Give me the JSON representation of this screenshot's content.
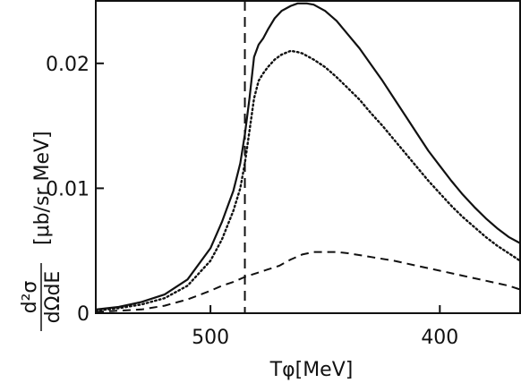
{
  "chart_data": {
    "type": "line",
    "title": "",
    "xlabel": "Tφ[MeV]",
    "ylabel": {
      "numerator": "d²σ",
      "denominator": "dΩdE",
      "unit": "[μb/sr MeV]"
    },
    "x_axis_reversed": true,
    "xlim": [
      550,
      365
    ],
    "ylim": [
      0,
      0.025
    ],
    "x_ticks": [
      {
        "value": 500,
        "label": "500"
      },
      {
        "value": 400,
        "label": "400"
      }
    ],
    "y_ticks": [
      {
        "value": 0,
        "label": "0"
      },
      {
        "value": 0.01,
        "label": "0.01"
      },
      {
        "value": 0.02,
        "label": "0.02"
      }
    ],
    "grid": false,
    "legend": "none",
    "reference_lines": [
      {
        "axis": "x",
        "value": 485,
        "style": "dashed"
      }
    ],
    "series": [
      {
        "style": "solid",
        "x": [
          550,
          540,
          530,
          520,
          510,
          500,
          495,
          490,
          487,
          485,
          483,
          481,
          479,
          477,
          475,
          472,
          469,
          465,
          462,
          458,
          455,
          450,
          445,
          440,
          435,
          430,
          425,
          420,
          415,
          410,
          405,
          400,
          395,
          390,
          385,
          380,
          375,
          370,
          365
        ],
        "y": [
          0.0003,
          0.0005,
          0.0009,
          0.0015,
          0.0027,
          0.0052,
          0.0073,
          0.0098,
          0.012,
          0.0143,
          0.0172,
          0.0205,
          0.0215,
          0.022,
          0.0227,
          0.0236,
          0.0242,
          0.0246,
          0.0248,
          0.0248,
          0.0247,
          0.0242,
          0.0234,
          0.0223,
          0.0212,
          0.0199,
          0.0186,
          0.0172,
          0.0158,
          0.0144,
          0.013,
          0.0118,
          0.0106,
          0.0095,
          0.0085,
          0.0076,
          0.0068,
          0.0061,
          0.0056
        ]
      },
      {
        "style": "dotted",
        "x": [
          550,
          540,
          530,
          520,
          510,
          500,
          495,
          490,
          487,
          485,
          483,
          481,
          479,
          477,
          475,
          472,
          469,
          465,
          462,
          460,
          455,
          450,
          445,
          440,
          435,
          430,
          425,
          420,
          415,
          410,
          405,
          400,
          395,
          390,
          385,
          380,
          375,
          370,
          365
        ],
        "y": [
          0.0002,
          0.0004,
          0.0007,
          0.0012,
          0.0022,
          0.0042,
          0.0059,
          0.0082,
          0.01,
          0.012,
          0.0146,
          0.0172,
          0.0186,
          0.0192,
          0.0197,
          0.0203,
          0.0207,
          0.021,
          0.0209,
          0.0208,
          0.0203,
          0.0197,
          0.0189,
          0.018,
          0.0171,
          0.016,
          0.015,
          0.0139,
          0.0128,
          0.0117,
          0.0106,
          0.0096,
          0.0086,
          0.0077,
          0.0069,
          0.0061,
          0.0054,
          0.0048,
          0.0042
        ]
      },
      {
        "style": "dashed",
        "x": [
          550,
          540,
          530,
          520,
          510,
          500,
          495,
          490,
          485,
          480,
          475,
          470,
          465,
          460,
          455,
          450,
          445,
          440,
          430,
          420,
          410,
          400,
          390,
          380,
          370,
          365
        ],
        "y": [
          0.0001,
          0.0002,
          0.0003,
          0.0006,
          0.0011,
          0.0018,
          0.0022,
          0.0025,
          0.0029,
          0.0032,
          0.0035,
          0.0038,
          0.0043,
          0.0047,
          0.0049,
          0.0049,
          0.0049,
          0.0048,
          0.0045,
          0.0042,
          0.0038,
          0.0034,
          0.003,
          0.0026,
          0.0022,
          0.0019
        ]
      }
    ]
  }
}
